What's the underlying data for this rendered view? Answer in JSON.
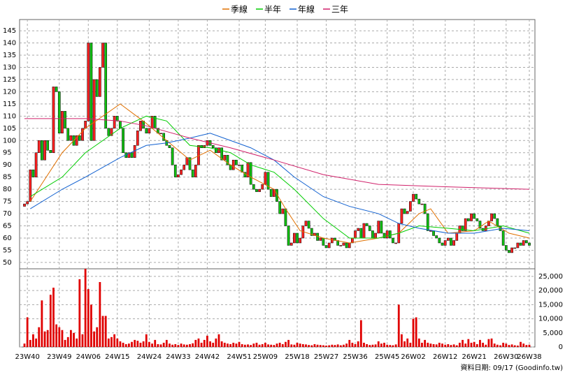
{
  "chart_data": [
    {
      "type": "candlestick",
      "up_color": "#ff2020",
      "down_color": "#10c010",
      "ylim": [
        47.4,
        149.6
      ],
      "yticks": [
        50,
        55,
        60,
        65,
        70,
        75,
        80,
        85,
        90,
        95,
        100,
        105,
        110,
        115,
        120,
        125,
        130,
        135,
        140,
        145
      ],
      "grid": true,
      "legend": "top",
      "open": [
        73,
        74,
        75,
        88,
        85,
        95,
        100,
        92,
        100,
        96,
        95,
        122,
        120,
        103,
        112,
        105,
        100,
        102,
        98,
        102,
        100,
        105,
        108,
        140,
        100,
        125,
        118,
        130,
        140,
        105,
        102,
        105,
        110,
        108,
        105,
        95,
        93,
        95,
        93,
        98,
        104,
        108,
        105,
        103,
        105,
        110,
        105,
        103,
        103,
        100,
        98,
        97,
        90,
        85,
        86,
        88,
        90,
        93,
        88,
        85,
        90,
        98,
        97,
        98,
        100,
        98,
        97,
        95,
        97,
        92,
        94,
        90,
        88,
        92,
        90,
        90,
        87,
        85,
        91,
        82,
        80,
        79,
        80,
        82,
        87,
        80,
        77,
        80,
        75,
        70,
        72,
        65,
        57,
        58,
        62,
        58,
        60,
        65,
        67,
        64,
        61,
        62,
        59,
        60,
        57,
        56,
        58,
        60,
        59,
        57,
        57,
        58,
        56,
        58,
        60,
        63,
        64,
        60,
        66,
        65,
        63,
        60,
        62,
        67,
        62,
        60,
        63,
        60,
        58,
        58,
        66,
        72,
        70,
        71,
        75,
        78,
        76,
        74,
        74,
        70,
        63,
        63,
        61,
        60,
        58,
        57,
        59,
        60,
        57,
        59,
        62,
        65,
        63,
        68,
        67,
        70,
        68,
        67,
        64,
        63,
        65,
        67,
        70,
        68,
        65,
        63,
        57,
        55,
        54,
        56,
        56,
        58,
        57,
        59,
        58
      ],
      "close": [
        74,
        75,
        88,
        85,
        95,
        100,
        92,
        100,
        96,
        95,
        122,
        120,
        103,
        112,
        105,
        100,
        102,
        98,
        102,
        100,
        105,
        108,
        140,
        100,
        125,
        118,
        130,
        140,
        105,
        102,
        105,
        110,
        108,
        105,
        95,
        93,
        95,
        93,
        98,
        104,
        108,
        105,
        103,
        105,
        110,
        105,
        103,
        103,
        100,
        98,
        97,
        90,
        85,
        86,
        88,
        90,
        93,
        88,
        85,
        90,
        98,
        97,
        98,
        100,
        98,
        97,
        95,
        97,
        92,
        94,
        90,
        88,
        92,
        90,
        90,
        87,
        85,
        91,
        82,
        80,
        79,
        80,
        82,
        87,
        80,
        77,
        80,
        75,
        70,
        72,
        65,
        57,
        58,
        62,
        58,
        60,
        65,
        67,
        64,
        61,
        62,
        59,
        60,
        57,
        56,
        58,
        60,
        59,
        57,
        57,
        58,
        56,
        58,
        60,
        63,
        64,
        60,
        66,
        65,
        63,
        60,
        62,
        67,
        62,
        60,
        63,
        60,
        58,
        58,
        66,
        72,
        70,
        71,
        75,
        78,
        76,
        74,
        74,
        70,
        63,
        63,
        61,
        60,
        58,
        57,
        59,
        60,
        57,
        59,
        62,
        65,
        63,
        68,
        67,
        70,
        68,
        67,
        64,
        63,
        65,
        67,
        70,
        68,
        65,
        63,
        57,
        55,
        54,
        56,
        56,
        58,
        57,
        59,
        58,
        57
      ],
      "series": [
        {
          "name": "季線",
          "color": "#e07000",
          "x": [
            2,
            13,
            21,
            33,
            42,
            49,
            57,
            64,
            71,
            78,
            86,
            90,
            95,
            103,
            112,
            122,
            129,
            136,
            140,
            146,
            155,
            160,
            167,
            174
          ],
          "values": [
            75,
            95,
            105,
            115,
            107,
            100,
            92,
            96,
            90,
            85,
            80,
            72,
            63,
            60,
            58,
            60,
            62,
            70,
            72,
            62,
            63,
            67,
            62,
            60
          ]
        },
        {
          "name": "半年",
          "color": "#00cc00",
          "x": [
            2,
            13,
            21,
            33,
            42,
            49,
            57,
            64,
            71,
            78,
            86,
            93,
            103,
            112,
            122,
            129,
            136,
            146,
            155,
            165,
            174
          ],
          "values": [
            77,
            85,
            95,
            105,
            110,
            108,
            98,
            97,
            95,
            90,
            87,
            80,
            68,
            60,
            60,
            62,
            65,
            64,
            63,
            65,
            62
          ]
        },
        {
          "name": "年線",
          "color": "#1060d0",
          "x": [
            2,
            13,
            21,
            33,
            42,
            49,
            57,
            64,
            71,
            78,
            86,
            93,
            103,
            112,
            122,
            129,
            136,
            146,
            155,
            165,
            174
          ],
          "values": [
            72,
            80,
            85,
            93,
            98,
            99,
            101,
            103,
            100,
            97,
            92,
            85,
            77,
            73,
            70,
            66,
            64,
            62,
            62,
            64,
            63
          ]
        },
        {
          "name": "三年",
          "color": "#d0206a",
          "x": [
            0,
            13,
            21,
            33,
            42,
            57,
            71,
            86,
            103,
            122,
            146,
            174
          ],
          "values": [
            109,
            109,
            109,
            108,
            106,
            101,
            97,
            92,
            86,
            82,
            81,
            80
          ]
        }
      ]
    },
    {
      "type": "bar",
      "color": "#e00000",
      "ylim": [
        0,
        27700
      ],
      "yticks": [
        0,
        {
          "value": 5000,
          "label": "5,000"
        },
        {
          "value": 10000,
          "label": "10,000"
        },
        {
          "value": 15000,
          "label": "15,000"
        },
        {
          "value": 20000,
          "label": "20,000"
        },
        {
          "value": 25000,
          "label": "25,000"
        }
      ],
      "categories": [
        null,
        "23W40",
        null,
        null,
        null,
        null,
        null,
        null,
        null,
        null,
        null,
        null,
        "23W49",
        null,
        null,
        null,
        null,
        null,
        null,
        null,
        null,
        null,
        "24W06",
        null,
        null,
        null,
        null,
        null,
        null,
        null,
        null,
        null,
        "24W15",
        null,
        null,
        null,
        null,
        null,
        null,
        null,
        null,
        null,
        null,
        "24W24",
        null,
        null,
        null,
        null,
        null,
        null,
        null,
        null,
        null,
        "24W33",
        null,
        null,
        null,
        null,
        null,
        null,
        null,
        null,
        null,
        "24W42",
        null,
        null,
        null,
        null,
        null,
        null,
        null,
        null,
        null,
        null,
        "24W51",
        null,
        null,
        null,
        null,
        null,
        null,
        null,
        null,
        "25W09",
        null,
        null,
        null,
        null,
        null,
        null,
        null,
        null,
        null,
        null,
        "25W18",
        null,
        null,
        null,
        null,
        null,
        null,
        null,
        null,
        null,
        "25W27",
        null,
        null,
        null,
        null,
        null,
        null,
        null,
        null,
        null,
        "25W36",
        null,
        null,
        null,
        null,
        null,
        null,
        null,
        null,
        null,
        null,
        "25W45",
        null,
        null,
        null,
        null,
        null,
        null,
        null,
        null,
        "26W02",
        null,
        null,
        null,
        null,
        null,
        null,
        null,
        null,
        null,
        null,
        "26W12",
        null,
        null,
        null,
        null,
        null,
        null,
        null,
        null,
        null,
        "26W21",
        null,
        null,
        null,
        null,
        null,
        null,
        null,
        null,
        null,
        null,
        "26W30",
        null,
        null,
        null,
        null,
        null,
        null,
        null,
        "26W38"
      ],
      "values": [
        1200,
        10500,
        2500,
        4500,
        3000,
        7000,
        16500,
        5500,
        6000,
        18500,
        21000,
        8000,
        7000,
        6000,
        2500,
        3500,
        6000,
        5000,
        3000,
        24000,
        4500,
        29000,
        20500,
        15000,
        5500,
        7000,
        23000,
        11000,
        11000,
        3000,
        3500,
        4500,
        3000,
        2000,
        1500,
        1000,
        1200,
        1800,
        2500,
        2200,
        1500,
        2000,
        4500,
        1800,
        1200,
        2500,
        1000,
        900,
        1500,
        2500,
        1200,
        800,
        1000,
        700,
        1200,
        900,
        800,
        1000,
        1300,
        2500,
        3000,
        1500,
        2500,
        4000,
        2000,
        1500,
        3000,
        4500,
        2000,
        1500,
        1200,
        1000,
        1500,
        1200,
        1800,
        1000,
        800,
        900,
        700,
        1200,
        1500,
        800,
        1000,
        1500,
        900,
        800,
        700,
        1200,
        1500,
        1000,
        1800,
        2500,
        900,
        800,
        1500,
        1200,
        1000,
        900,
        700,
        600,
        1000,
        800,
        700,
        600,
        500,
        600,
        800,
        700,
        900,
        600,
        800,
        1200,
        2500,
        1500,
        1000,
        2000,
        9500,
        1500,
        1000,
        700,
        800,
        900,
        2000,
        1200,
        1500,
        800,
        700,
        600,
        900,
        15000,
        4500,
        2000,
        3000,
        1500,
        10000,
        10500,
        3000,
        1500,
        2500,
        1500,
        1200,
        1000,
        900,
        1500,
        1200,
        800,
        1000,
        700,
        900,
        600,
        1500,
        2500,
        1200,
        2800,
        1500,
        1800,
        1000,
        2500,
        1500,
        800,
        2800,
        3000,
        1200,
        800,
        600,
        1500,
        1200,
        700,
        900,
        600,
        500,
        1800,
        1200,
        700,
        800
      ]
    }
  ],
  "footer": "資料日期: 09/17 (Goodinfo.tw)"
}
